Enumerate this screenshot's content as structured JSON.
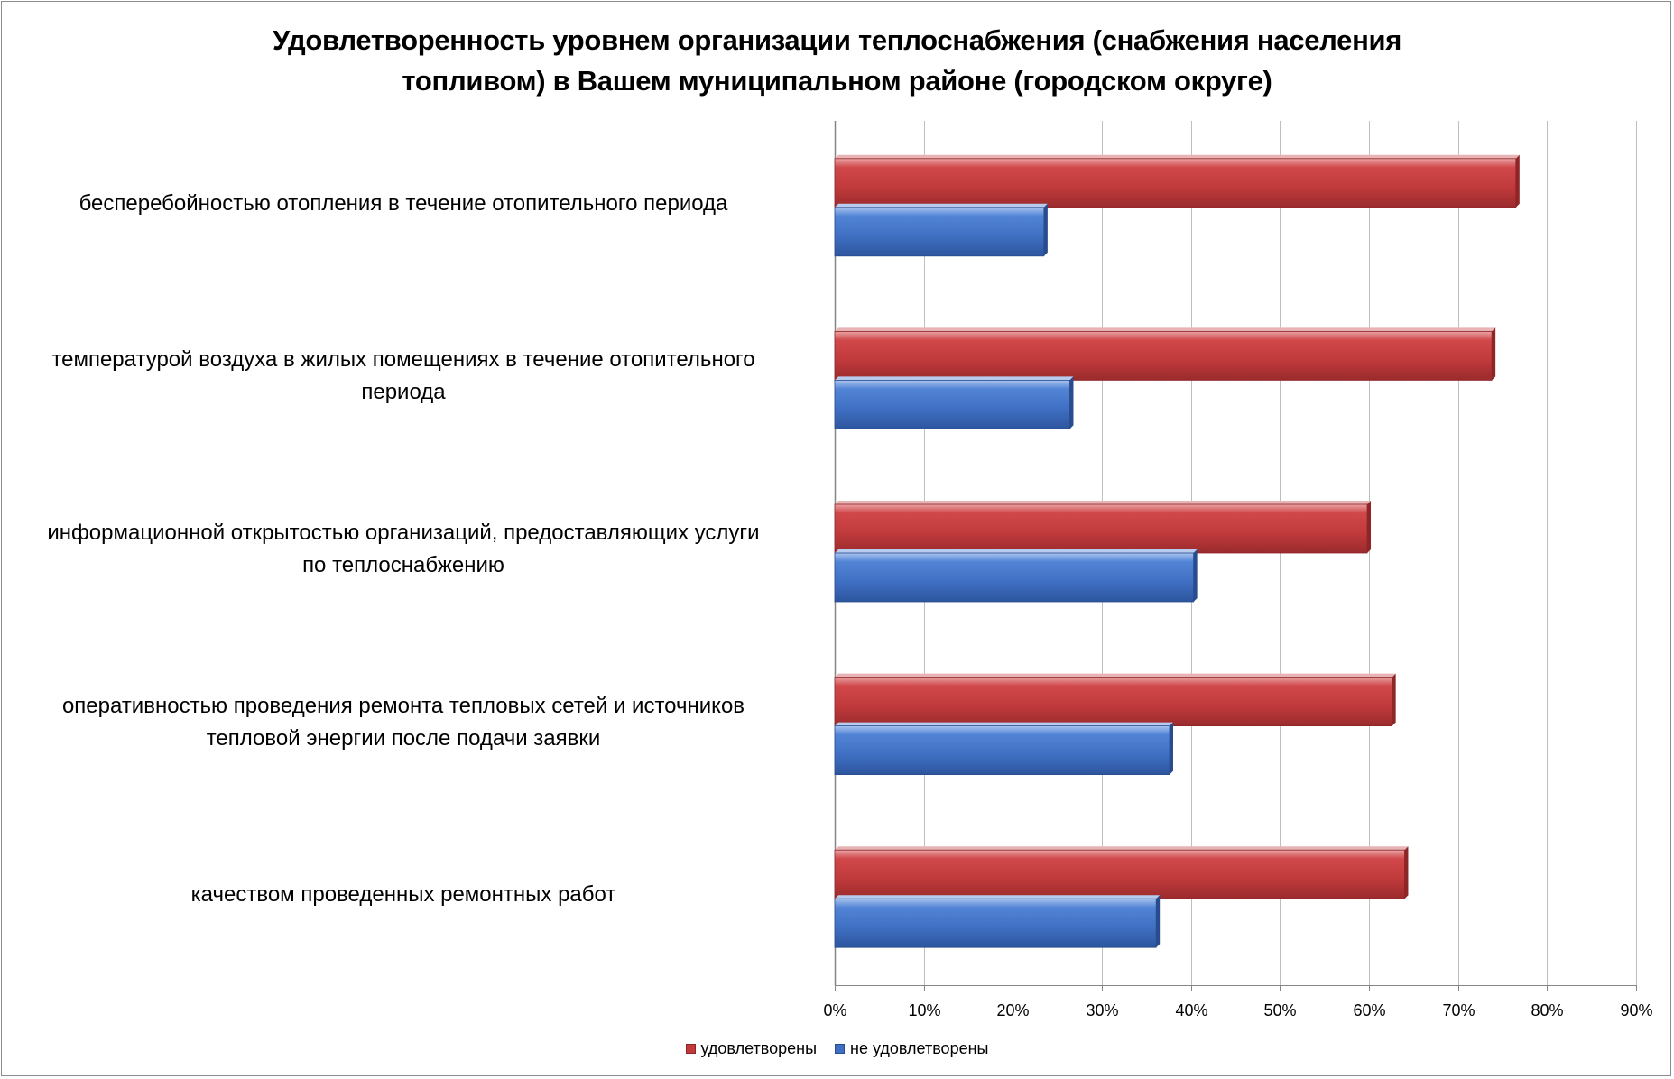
{
  "chart_data": {
    "type": "bar",
    "orientation": "horizontal",
    "title": "Удовлетворенность уровнем организации теплоснабжения (снабжения населения топливом) в Вашем муниципальном районе (городском округе)",
    "title_lines": [
      "Удовлетворенность уровнем организации теплоснабжения (снабжения населения",
      "топливом) в Вашем муниципальном районе (городском округе)"
    ],
    "categories": [
      [
        "бесперебойностью  отопления в течение отопительного периода"
      ],
      [
        "температурой  воздуха в жилых помещениях в течение отопительного",
        "периода"
      ],
      [
        "информационной открытостью  организаций, предоставляющих услуги",
        "по теплоснабжению"
      ],
      [
        "оперативностью  проведения ремонта тепловых сетей и источников",
        "тепловой энергии после подачи заявки"
      ],
      [
        "качеством  проведенных ремонтных работ"
      ]
    ],
    "series": [
      {
        "name": "удовлетворены",
        "color": "#c0393b",
        "values": [
          76.5,
          73.8,
          59.8,
          62.6,
          64.0
        ]
      },
      {
        "name": "не удовлетворены",
        "color": "#3f6fc2",
        "values": [
          23.5,
          26.4,
          40.3,
          37.6,
          36.1
        ]
      }
    ],
    "xlim": [
      0,
      90
    ],
    "xticks": [
      "0%",
      "10%",
      "20%",
      "30%",
      "40%",
      "50%",
      "60%",
      "70%",
      "80%",
      "90%"
    ],
    "grid": true,
    "legend_position": "bottom"
  }
}
